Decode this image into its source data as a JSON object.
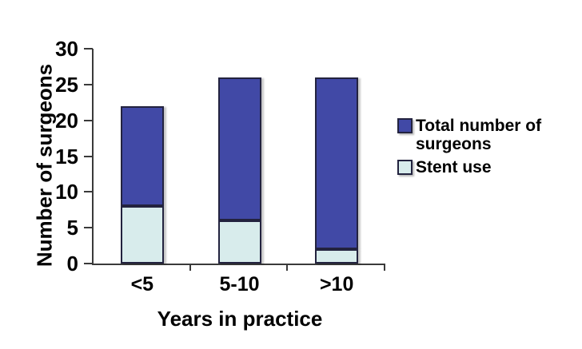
{
  "chart_data": {
    "type": "bar",
    "bar_style": "overlay-stacked",
    "categories": [
      "<5",
      "5-10",
      ">10"
    ],
    "series": [
      {
        "name": "Total number of\nsurgeons",
        "label": "Total number of surgeons",
        "values": [
          22,
          26,
          26
        ],
        "color": "#4149A6"
      },
      {
        "name": "Stent use",
        "label": "Stent use",
        "values": [
          8,
          6,
          2
        ],
        "color": "#D8ECEC"
      }
    ],
    "xlabel": "Years in practice",
    "ylabel": "Number of surgeons",
    "ylim": [
      0,
      30
    ],
    "yticks": [
      0,
      5,
      10,
      15,
      20,
      25,
      30
    ],
    "grid": false,
    "legend_position": "right",
    "axis_color": "#3a3a3a",
    "bar_border_color": "#23233f",
    "text_color": "#000000",
    "background_color": "#ffffff"
  },
  "legend": {
    "item_total": "Total number of surgeons",
    "item_stent": "Stent use"
  }
}
